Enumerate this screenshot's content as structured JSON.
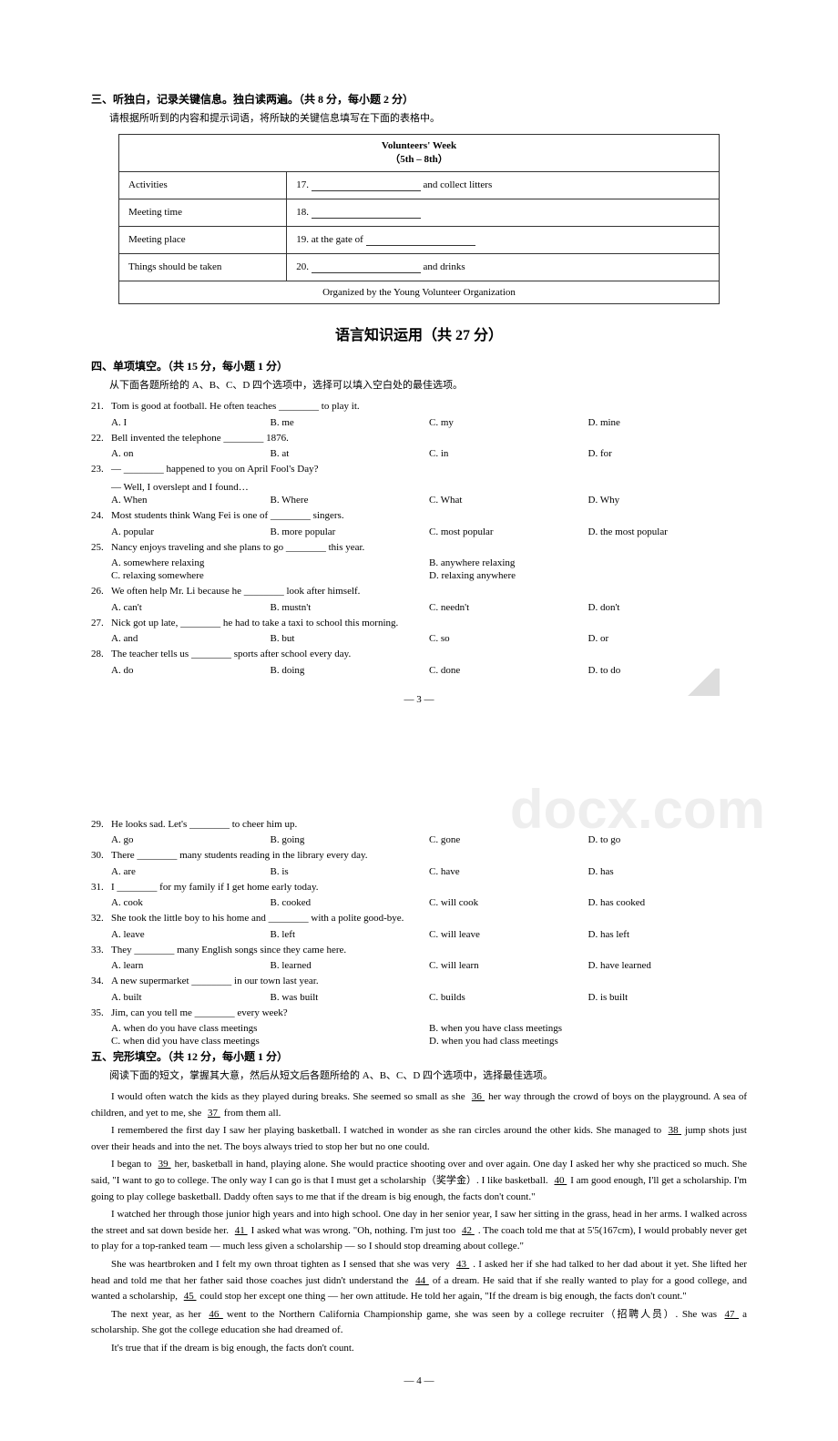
{
  "page1": {
    "section3_title": "三、听独白，记录关键信息。独白读两遍。（共 8 分，每小题 2 分）",
    "section3_sub": "请根据所听到的内容和提示词语，将所缺的关键信息填写在下面的表格中。",
    "table": {
      "title_line1": "Volunteers' Week",
      "title_line2": "（5th – 8th）",
      "rows": [
        {
          "label": "Activities",
          "content_prefix": "17. ",
          "content_suffix": " and collect litters"
        },
        {
          "label": "Meeting time",
          "content_prefix": "18. ",
          "content_suffix": ""
        },
        {
          "label": "Meeting place",
          "content_prefix": "19. at the gate of ",
          "content_suffix": ""
        },
        {
          "label": "Things should be taken",
          "content_prefix": "20. ",
          "content_suffix": " and drinks"
        }
      ],
      "footer": "Organized by the Young Volunteer Organization"
    },
    "big_title": "语言知识运用（共 27 分）",
    "section4_title": "四、单项填空。（共 15 分，每小题 1 分）",
    "section4_sub": "从下面各题所给的 A、B、C、D 四个选项中，选择可以填入空白处的最佳选项。",
    "questions": [
      {
        "num": "21.",
        "text": "Tom is good at football. He often teaches ________ to play it.",
        "opts": [
          "A. I",
          "B. me",
          "C. my",
          "D. mine"
        ]
      },
      {
        "num": "22.",
        "text": "Bell invented the telephone ________ 1876.",
        "opts": [
          "A. on",
          "B. at",
          "C. in",
          "D. for"
        ]
      },
      {
        "num": "23.",
        "text": "— ________ happened to you on April Fool's Day?",
        "sub": "— Well, I overslept and I found…",
        "opts": [
          "A. When",
          "B. Where",
          "C. What",
          "D. Why"
        ]
      },
      {
        "num": "24.",
        "text": "Most students think Wang Fei is one of ________ singers.",
        "opts": [
          "A. popular",
          "B. more popular",
          "C. most popular",
          "D. the most popular"
        ]
      },
      {
        "num": "25.",
        "text": "Nancy enjoys traveling and she plans to go ________ this year.",
        "opts2col": [
          [
            "A. somewhere relaxing",
            "B. anywhere relaxing"
          ],
          [
            "C. relaxing somewhere",
            "D. relaxing anywhere"
          ]
        ]
      },
      {
        "num": "26.",
        "text": "We often help Mr. Li because he ________ look after himself.",
        "opts": [
          "A. can't",
          "B. mustn't",
          "C. needn't",
          "D. don't"
        ]
      },
      {
        "num": "27.",
        "text": "Nick got up late, ________ he had to take a taxi to school this morning.",
        "opts": [
          "A. and",
          "B. but",
          "C. so",
          "D. or"
        ]
      },
      {
        "num": "28.",
        "text": "The teacher tells us ________ sports after school every day.",
        "opts": [
          "A. do",
          "B. doing",
          "C. done",
          "D. to do"
        ]
      }
    ],
    "page_num": "— 3 —"
  },
  "page2": {
    "watermark": "docx.com",
    "questions": [
      {
        "num": "29.",
        "text": "He looks sad. Let's ________ to cheer him up.",
        "opts": [
          "A. go",
          "B. going",
          "C. gone",
          "D. to go"
        ]
      },
      {
        "num": "30.",
        "text": "There ________ many students reading in the library every day.",
        "opts": [
          "A. are",
          "B. is",
          "C. have",
          "D. has"
        ]
      },
      {
        "num": "31.",
        "text": "I ________ for my family if I get home early today.",
        "opts": [
          "A. cook",
          "B. cooked",
          "C. will cook",
          "D. has cooked"
        ]
      },
      {
        "num": "32.",
        "text": "She took the little boy to his home and ________ with a polite good-bye.",
        "opts": [
          "A. leave",
          "B. left",
          "C. will leave",
          "D. has left"
        ]
      },
      {
        "num": "33.",
        "text": "They ________ many English songs since they came here.",
        "opts": [
          "A. learn",
          "B. learned",
          "C. will learn",
          "D. have learned"
        ]
      },
      {
        "num": "34.",
        "text": "A new supermarket ________ in our town last year.",
        "opts": [
          "A. built",
          "B. was built",
          "C. builds",
          "D. is built"
        ]
      },
      {
        "num": "35.",
        "text": "Jim, can you tell me ________ every week?",
        "opts2col": [
          [
            "A. when do you have class meetings",
            "B. when you have class meetings"
          ],
          [
            "C. when did you have class meetings",
            "D. when you had class meetings"
          ]
        ]
      }
    ],
    "section5_title": "五、完形填空。（共 12 分，每小题 1 分）",
    "section5_sub": "阅读下面的短文，掌握其大意，然后从短文后各题所给的 A、B、C、D 四个选项中，选择最佳选项。",
    "passage": [
      "I would often watch the kids as they played during breaks. She seemed so small as she __36__ her way through the crowd of boys on the playground. A sea of children, and yet to me, she __37__ from them all.",
      "I remembered the first day I saw her playing basketball. I watched in wonder as she ran circles around the other kids. She managed to __38__ jump shots just over their heads and into the net. The boys always tried to stop her but no one could.",
      "I began to __39__ her, basketball in hand, playing alone. She would practice shooting over and over again. One day I asked her why she practiced so much. She said, \"I want to go to college. The only way I can go is that I must get a scholarship（奖学金）. I like basketball. __40__ I am good enough, I'll get a scholarship. I'm going to play college basketball. Daddy often says to me that if the dream is big enough, the facts don't count.\"",
      "I watched her through those junior high years and into high school. One day in her senior year, I saw her sitting in the grass, head in her arms. I walked across the street and sat down beside her. __41__ I asked what was wrong. \"Oh, nothing. I'm just too __42__. The coach told me that at 5'5(167cm), I would probably never get to play for a top-ranked team — much less given a scholarship — so I should stop dreaming about college.\"",
      "She was heartbroken and I felt my own throat tighten as I sensed that she was very __43__. I asked her if she had talked to her dad about it yet. She lifted her head and told me that her father said those coaches just didn't understand the __44__ of a dream. He said that if she really wanted to play for a good college, and wanted a scholarship, __45__ could stop her except one thing — her own attitude. He told her again, \"If the dream is big enough, the facts don't count.\"",
      "The next year, as her __46__ went to the Northern California Championship game, she was seen by a college recruiter（招聘人员）. She was __47__ a scholarship. She got the college education she had dreamed of.",
      "It's true that if the dream is big enough, the facts don't count."
    ],
    "page_num": "— 4 —"
  }
}
